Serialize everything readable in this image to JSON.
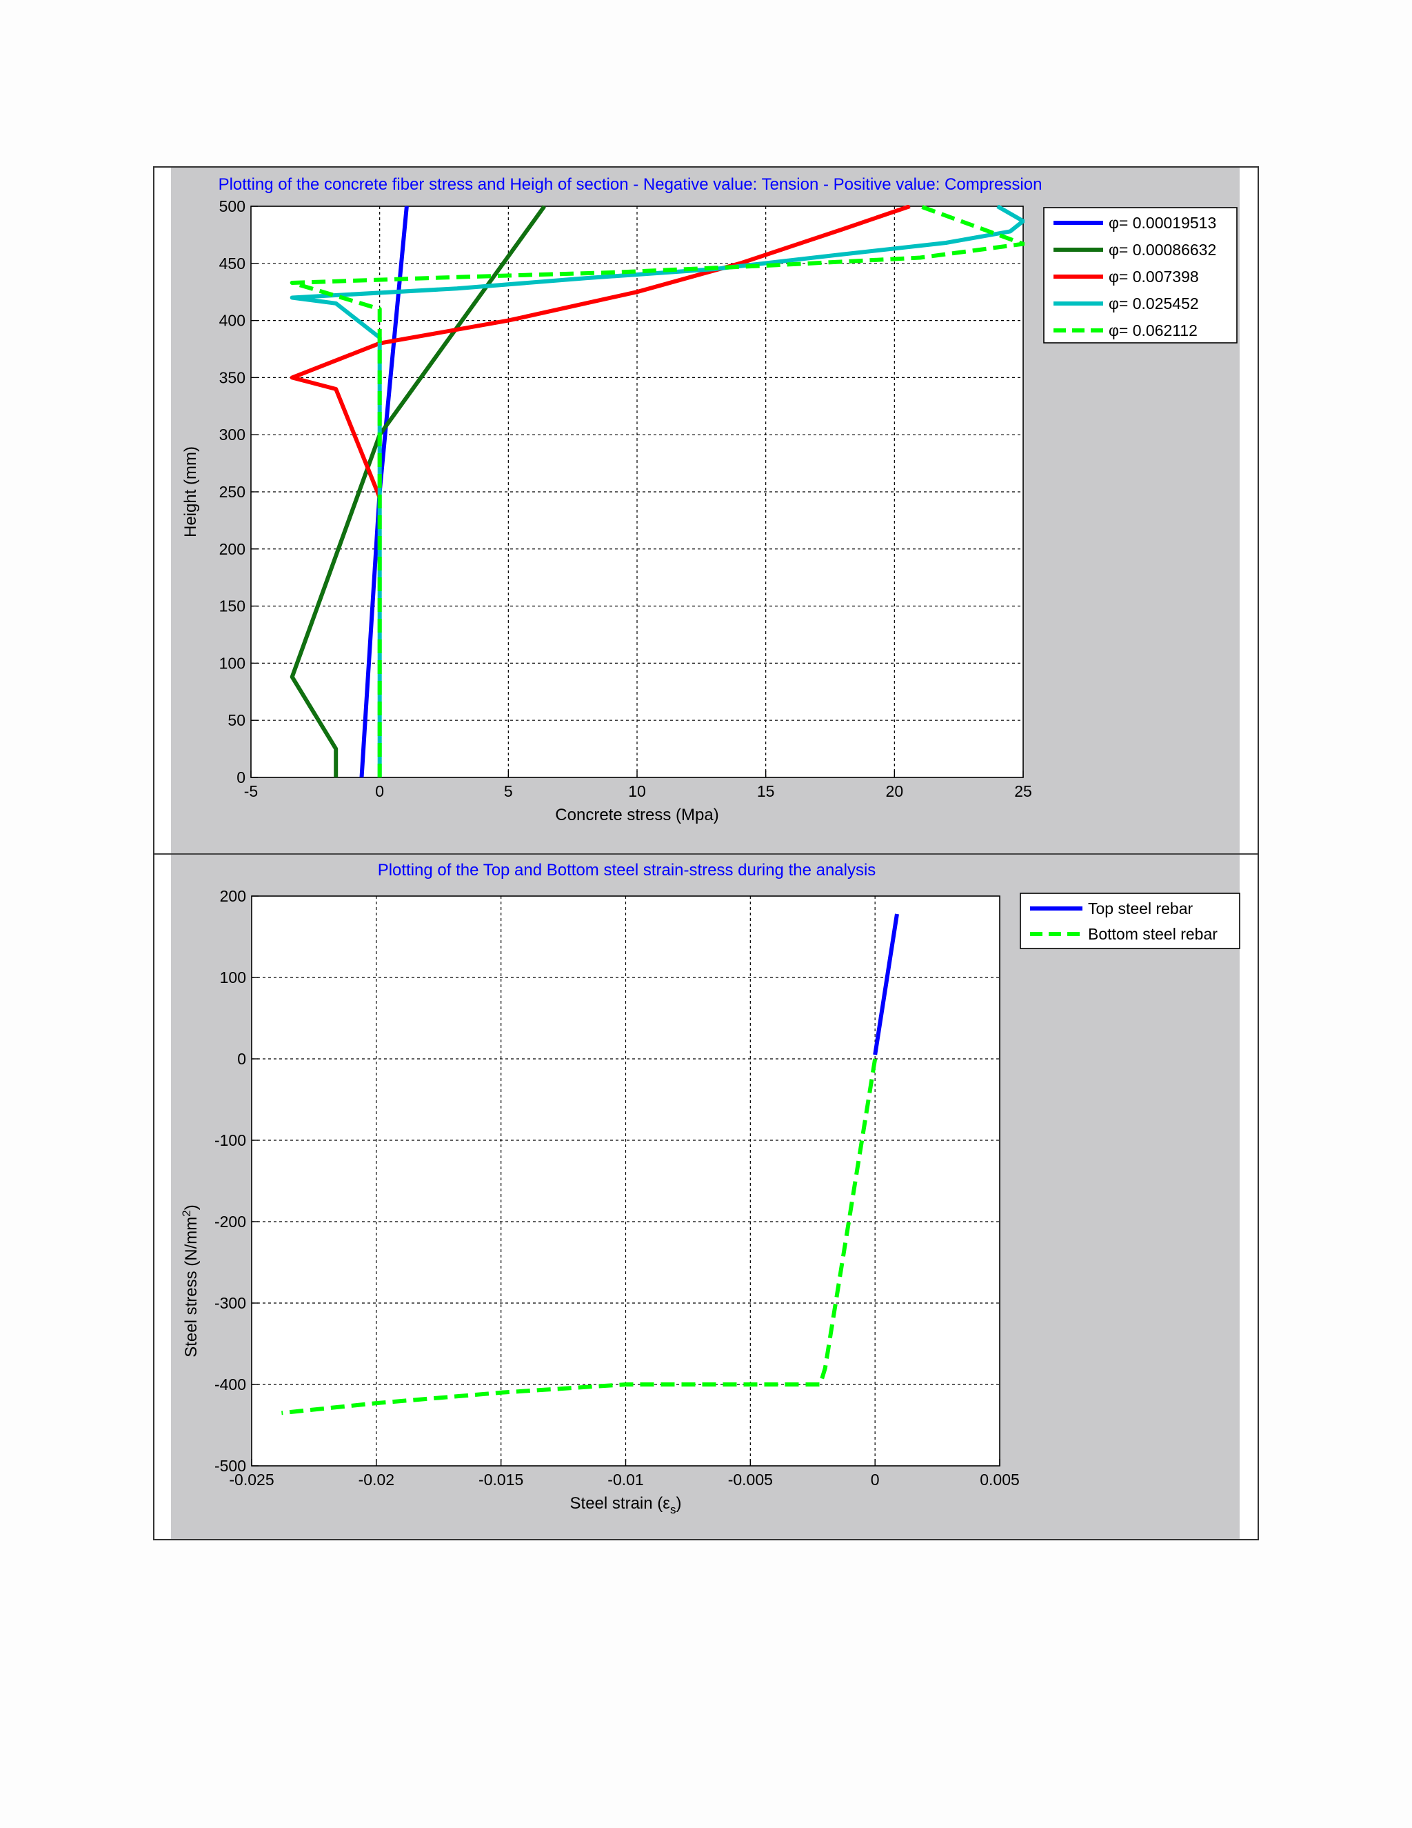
{
  "chart_data": [
    {
      "type": "line",
      "title": "Plotting of the concrete fiber stress and Heigh of section - Negative value: Tension - Positive value: Compression",
      "xlabel": "Concrete stress (Mpa)",
      "ylabel": "Height (mm)",
      "xlim": [
        -5,
        25
      ],
      "ylim": [
        0,
        500
      ],
      "xticks": [
        -5,
        0,
        5,
        10,
        15,
        20,
        25
      ],
      "yticks": [
        0,
        50,
        100,
        150,
        200,
        250,
        300,
        350,
        400,
        450,
        500
      ],
      "grid": true,
      "legend_position": "outside-top-right",
      "series": [
        {
          "name": "φ= 0.00019513",
          "color": "#0000ff",
          "dash": "solid",
          "points": [
            [
              -0.7,
              0
            ],
            [
              0,
              250
            ],
            [
              1.05,
              500
            ]
          ]
        },
        {
          "name": "φ= 0.00086632",
          "color": "#107010",
          "dash": "solid",
          "points": [
            [
              -1.7,
              0
            ],
            [
              -1.7,
              25
            ],
            [
              -3.4,
              88
            ],
            [
              0,
              300
            ],
            [
              6.4,
              500
            ]
          ]
        },
        {
          "name": "φ= 0.007398",
          "color": "#ff0000",
          "dash": "solid",
          "points": [
            [
              0,
              245
            ],
            [
              -1.7,
              340
            ],
            [
              -3.4,
              350
            ],
            [
              0,
              380
            ],
            [
              5,
              400
            ],
            [
              10,
              425
            ],
            [
              14,
              450
            ],
            [
              18,
              480
            ],
            [
              20.6,
              500
            ]
          ]
        },
        {
          "name": "φ= 0.025452",
          "color": "#00c0c0",
          "dash": "solid",
          "points": [
            [
              0,
              0
            ],
            [
              0,
              385
            ],
            [
              -1.7,
              415
            ],
            [
              -3.4,
              420
            ],
            [
              3,
              428
            ],
            [
              8,
              437
            ],
            [
              13,
              445
            ],
            [
              18,
              458
            ],
            [
              22,
              468
            ],
            [
              24.5,
              478
            ],
            [
              25,
              487
            ],
            [
              24,
              500
            ]
          ]
        },
        {
          "name": "φ= 0.062112",
          "color": "#00ff00",
          "dash": "dashed",
          "points": [
            [
              0,
              0
            ],
            [
              0,
              410
            ],
            [
              -2.2,
              425
            ],
            [
              -3.4,
              433
            ],
            [
              3,
              438
            ],
            [
              9,
              442
            ],
            [
              15,
              448
            ],
            [
              21,
              455
            ],
            [
              25,
              467
            ],
            [
              21,
              500
            ]
          ]
        }
      ]
    },
    {
      "type": "line",
      "title": "Plotting of the Top  and Bottom steel strain-stress during the analysis",
      "xlabel": "Steel strain (ε",
      "xlabel_subscript": "s",
      "xlabel_suffix": ")",
      "ylabel": "Steel stress (N/mm",
      "ylabel_superscript": "2",
      "ylabel_suffix": ")",
      "xlim": [
        -0.025,
        0.005
      ],
      "ylim": [
        -500,
        200
      ],
      "xticks": [
        -0.025,
        -0.02,
        -0.015,
        -0.01,
        -0.005,
        0,
        0.005
      ],
      "yticks": [
        -500,
        -400,
        -300,
        -200,
        -100,
        0,
        100,
        200
      ],
      "grid": true,
      "legend_position": "outside-top-right",
      "series": [
        {
          "name": "Top steel rebar",
          "color": "#0000ff",
          "dash": "solid",
          "points": [
            [
              0,
              5
            ],
            [
              0.00088,
              178
            ]
          ]
        },
        {
          "name": "Bottom steel rebar",
          "color": "#00ff00",
          "dash": "dashed",
          "points": [
            [
              0,
              0
            ],
            [
              -0.002,
              -380
            ],
            [
              -0.0022,
              -400
            ],
            [
              -0.01,
              -400
            ],
            [
              -0.015,
              -410
            ],
            [
              -0.02,
              -423
            ],
            [
              -0.0238,
              -435
            ]
          ]
        }
      ]
    }
  ]
}
